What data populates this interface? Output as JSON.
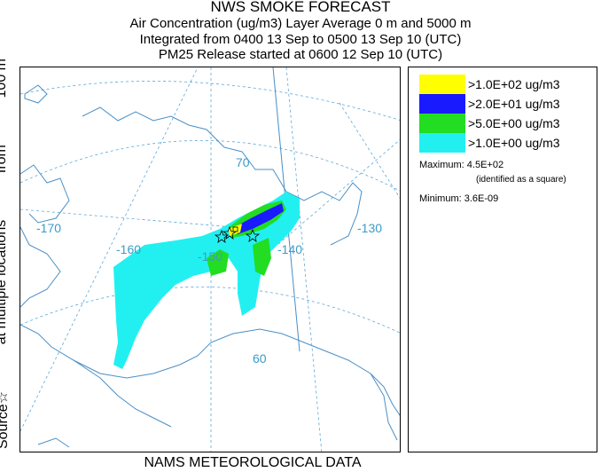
{
  "header": {
    "title": "NWS SMOKE FORECAST",
    "line1": "Air Concentration (ug/m3) Layer Average    0 m and  5000 m",
    "line2": "Integrated from 0400 13 Sep to 0500 13 Sep 10 (UTC)",
    "line3": "PM25 Release started at 0600 12 Sep 10 (UTC)"
  },
  "side_label": {
    "source": "Source☆",
    "at": "at multiple locations",
    "from": "from",
    "height": "100 m"
  },
  "footer": "NAMS METEOROLOGICAL DATA",
  "map": {
    "graticule_labels": [
      "-170",
      "-160",
      "-150",
      "-140",
      "-130",
      "70",
      "60"
    ],
    "colors": {
      "coast": "#4a8fc6",
      "grid": "#5aa8d8",
      "label": "#3c9bc8"
    }
  },
  "legend": {
    "items": [
      {
        "color": "#ffff00",
        "label": ">1.0E+02 ug/m3"
      },
      {
        "color": "#1a1aff",
        "label": ">2.0E+01 ug/m3"
      },
      {
        "color": "#22dd22",
        "label": ">5.0E+00 ug/m3"
      },
      {
        "color": "#22f0f0",
        "label": ">1.0E+00 ug/m3"
      }
    ],
    "maximum": "Maximum: 4.5E+02",
    "maximum_note": "(identified as a square)",
    "minimum": "Minimum: 3.6E-09"
  }
}
